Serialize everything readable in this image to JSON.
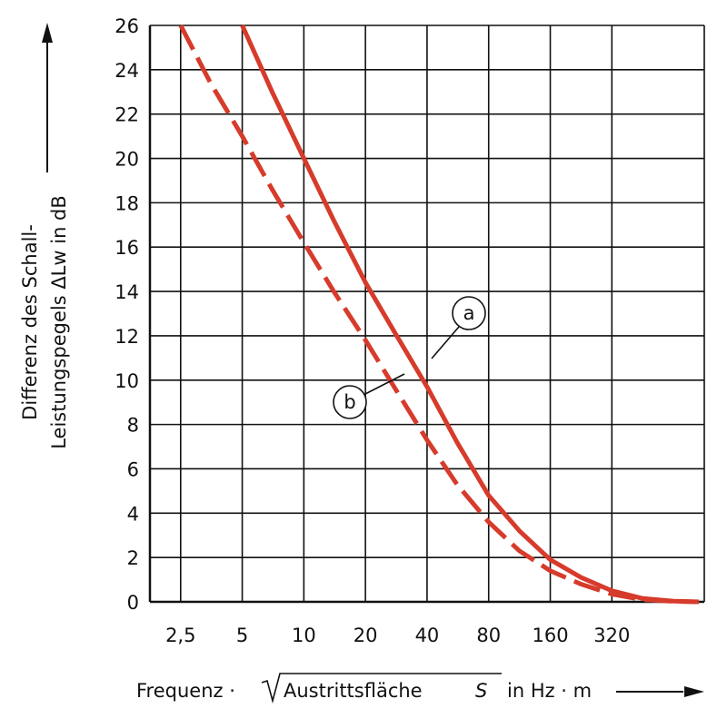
{
  "chart_data": {
    "type": "line",
    "xlabel_parts": {
      "prefix": "Frequenz ·",
      "radicand": "Austrittsfläche",
      "symbol": "S",
      "suffix": "in Hz · m"
    },
    "ylabel_lines": [
      "Differenz des Schall-",
      "Leistungspegels ΔLw in dB"
    ],
    "x_scale": "log2",
    "x_ticks": [
      "2,5",
      "5",
      "10",
      "20",
      "40",
      "80",
      "160",
      "320"
    ],
    "x_tick_values": [
      2.5,
      5,
      10,
      20,
      40,
      80,
      160,
      320
    ],
    "xlim": [
      1.77,
      905
    ],
    "ylim": [
      0,
      26
    ],
    "y_ticks": [
      0,
      2,
      4,
      6,
      8,
      10,
      12,
      14,
      16,
      18,
      20,
      22,
      24,
      26
    ],
    "grid": true,
    "series": [
      {
        "label": "a",
        "style": "solid",
        "color": "#d63b2b",
        "points": [
          [
            5,
            26
          ],
          [
            7,
            23
          ],
          [
            10,
            20
          ],
          [
            14,
            17.2
          ],
          [
            20,
            14.4
          ],
          [
            28,
            12.1
          ],
          [
            40,
            9.7
          ],
          [
            56,
            7.2
          ],
          [
            80,
            4.8
          ],
          [
            113,
            3.2
          ],
          [
            160,
            1.9
          ],
          [
            226,
            1.1
          ],
          [
            320,
            0.5
          ],
          [
            453,
            0.15
          ],
          [
            640,
            0.03
          ],
          [
            850,
            0
          ]
        ]
      },
      {
        "label": "b",
        "style": "dashed",
        "color": "#d63b2b",
        "points": [
          [
            2.5,
            26
          ],
          [
            3.5,
            23.4
          ],
          [
            5,
            21
          ],
          [
            7,
            18.6
          ],
          [
            10,
            16.2
          ],
          [
            14,
            14
          ],
          [
            20,
            11.8
          ],
          [
            28,
            9.6
          ],
          [
            40,
            7.3
          ],
          [
            56,
            5.3
          ],
          [
            80,
            3.6
          ],
          [
            113,
            2.3
          ],
          [
            160,
            1.4
          ],
          [
            226,
            0.8
          ],
          [
            320,
            0.35
          ],
          [
            453,
            0.1
          ],
          [
            640,
            0.02
          ],
          [
            850,
            0
          ]
        ]
      }
    ],
    "annotations": [
      {
        "text": "a",
        "series": "a"
      },
      {
        "text": "b",
        "series": "b"
      }
    ]
  }
}
